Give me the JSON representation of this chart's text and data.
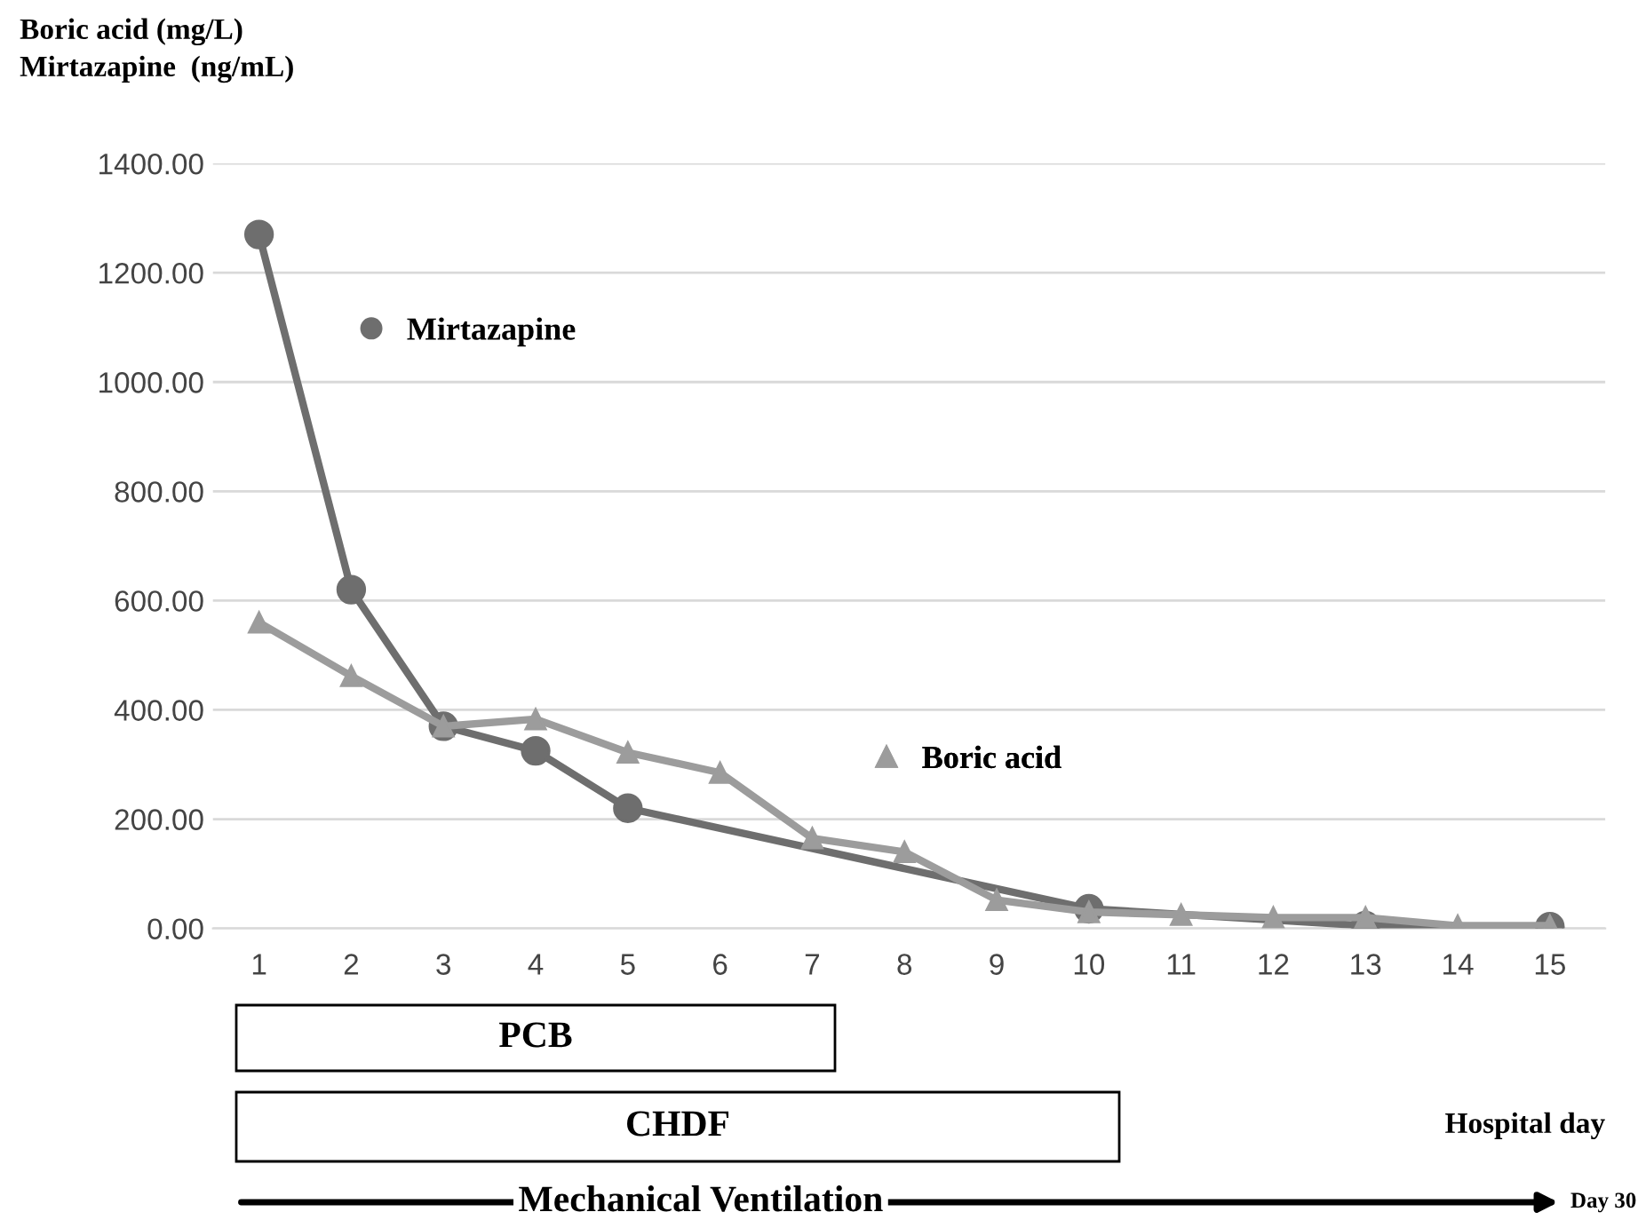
{
  "chart_data": {
    "type": "line",
    "ylabel": "Boric acid (mg/L)\nMirtazapine  (ng/mL)",
    "xlabel": "Hospital day",
    "series": [
      {
        "name": "Mirtazapine",
        "color": "#6e6e6e",
        "marker": "circle",
        "x": [
          1,
          2,
          3,
          4,
          5,
          10,
          13,
          15
        ],
        "values": [
          1270,
          620,
          370,
          325,
          220,
          36,
          5,
          3
        ]
      },
      {
        "name": "Boric acid",
        "color": "#9c9c9c",
        "marker": "triangle",
        "x": [
          1,
          2,
          3,
          4,
          5,
          6,
          7,
          8,
          9,
          10,
          11,
          12,
          13,
          14,
          15
        ],
        "values": [
          560,
          462,
          370,
          383,
          322,
          285,
          165,
          140,
          52,
          30,
          25,
          20,
          20,
          5,
          5
        ]
      }
    ],
    "xlim": [
      0.5,
      15.6
    ],
    "xticks": [
      1,
      2,
      3,
      4,
      5,
      6,
      7,
      8,
      9,
      10,
      11,
      12,
      13,
      14,
      15
    ],
    "ylim": [
      0,
      1400
    ],
    "yticks": [
      {
        "value": 0,
        "label": "0.00"
      },
      {
        "value": 200,
        "label": "200.00"
      },
      {
        "value": 400,
        "label": "400.00"
      },
      {
        "value": 600,
        "label": "600.00"
      },
      {
        "value": 800,
        "label": "800.00"
      },
      {
        "value": 1000,
        "label": "1000.00"
      },
      {
        "value": 1200,
        "label": "1200.00"
      },
      {
        "value": 1400,
        "label": "1400.00"
      }
    ],
    "grid": "y",
    "legend": "top left",
    "annotations": [
      "PCB",
      "CHDF",
      "Mechanical Ventilation",
      "Day 30"
    ]
  }
}
